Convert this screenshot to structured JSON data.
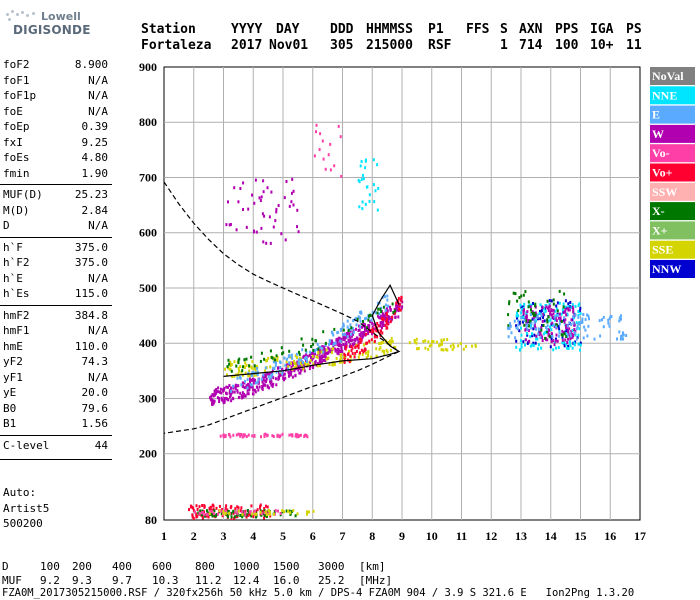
{
  "logo": {
    "line1": "Lowell",
    "line2": "DIGISONDE"
  },
  "header": {
    "row1": [
      "Station",
      "YYYY",
      "DAY",
      "DDD",
      "HHMMSS",
      "P1",
      "FFS",
      "S",
      "AXN",
      "PPS",
      "IGA",
      "PS"
    ],
    "row2": [
      "Fortaleza",
      "2017",
      "Nov01",
      "305",
      "215000",
      "RSF",
      "1",
      "714",
      "100",
      "10+",
      "11"
    ]
  },
  "params": [
    {
      "k": "foF2",
      "v": "8.900"
    },
    {
      "k": "foF1",
      "v": "N/A"
    },
    {
      "k": "foF1p",
      "v": "N/A"
    },
    {
      "k": "foE",
      "v": "N/A"
    },
    {
      "k": "foEp",
      "v": "0.39"
    },
    {
      "k": "fxI",
      "v": "9.25"
    },
    {
      "k": "foEs",
      "v": "4.80"
    },
    {
      "k": "fmin",
      "v": "1.90"
    },
    {
      "k": "MUF(D)",
      "v": "25.23"
    },
    {
      "k": "M(D)",
      "v": "2.84"
    },
    {
      "k": "D",
      "v": "N/A"
    },
    {
      "k": "h`F",
      "v": "375.0"
    },
    {
      "k": "h`F2",
      "v": "375.0"
    },
    {
      "k": "h`E",
      "v": "N/A"
    },
    {
      "k": "h`Es",
      "v": "115.0"
    },
    {
      "k": "hmF2",
      "v": "384.8"
    },
    {
      "k": "hmF1",
      "v": "N/A"
    },
    {
      "k": "hmE",
      "v": "110.0"
    },
    {
      "k": "yF2",
      "v": "74.3"
    },
    {
      "k": "yF1",
      "v": "N/A"
    },
    {
      "k": "yE",
      "v": "20.0"
    },
    {
      "k": "B0",
      "v": "79.6"
    },
    {
      "k": "B1",
      "v": "1.56"
    },
    {
      "k": "C-level",
      "v": "44"
    }
  ],
  "auto": {
    "line1": "Auto:",
    "line2": "Artist5",
    "line3": "500200"
  },
  "legend": [
    {
      "label": "NoVal",
      "color": "#808080"
    },
    {
      "label": "NNE",
      "color": "#00e5ff"
    },
    {
      "label": "E",
      "color": "#5aabff"
    },
    {
      "label": "W",
      "color": "#b000b0"
    },
    {
      "label": "Vo-",
      "color": "#ff3fa8"
    },
    {
      "label": "Vo+",
      "color": "#ff0030"
    },
    {
      "label": "SSW",
      "color": "#ffb0b0"
    },
    {
      "label": "X-",
      "color": "#007800"
    },
    {
      "label": "X+",
      "color": "#80c060"
    },
    {
      "label": "SSE",
      "color": "#d4d400"
    },
    {
      "label": "NNW",
      "color": "#0000d0"
    }
  ],
  "footer": {
    "d_label": "D",
    "d_values": [
      "100",
      "200",
      "400",
      "600",
      "800",
      "1000",
      "1500",
      "3000"
    ],
    "d_unit": "[km]",
    "muf_label": "MUF",
    "muf_values": [
      "9.2",
      "9.3",
      "9.7",
      "10.3",
      "11.2",
      "12.4",
      "16.0",
      "25.2"
    ],
    "muf_unit": "[MHz]",
    "info": "FZA0M_2017305215000.RSF / 320fx256h 50 kHz 5.0 km / DPS-4 FZA0M 904 / 3.9 S 321.6 E   Ion2Png 1.3.20"
  },
  "chart_data": {
    "type": "scatter",
    "xlim": [
      1,
      17
    ],
    "ylim": [
      80,
      900
    ],
    "x_ticks": [
      "1",
      "2",
      "3",
      "4",
      "5",
      "6",
      "7",
      "8",
      "9",
      "10",
      "11",
      "12",
      "13",
      "14",
      "15",
      "16",
      "17"
    ],
    "y_ticks": [
      "80",
      "200",
      "300",
      "400",
      "500",
      "600",
      "700",
      "800",
      "900"
    ],
    "grid": true,
    "legend_position": "right",
    "profile_dashed": [
      [
        1.0,
        692
      ],
      [
        1.5,
        652
      ],
      [
        2.0,
        617
      ],
      [
        2.5,
        588
      ],
      [
        3.0,
        562
      ],
      [
        3.5,
        542
      ],
      [
        4.0,
        525
      ],
      [
        4.5,
        512
      ],
      [
        5.0,
        500
      ],
      [
        5.5,
        488
      ],
      [
        6.0,
        477
      ],
      [
        6.5,
        465
      ],
      [
        7.0,
        453
      ],
      [
        7.5,
        440
      ],
      [
        8.0,
        420
      ],
      [
        8.5,
        400
      ],
      [
        8.9,
        385
      ],
      [
        8.5,
        375
      ],
      [
        8.0,
        362
      ],
      [
        7.5,
        350
      ],
      [
        7.0,
        340
      ],
      [
        6.5,
        330
      ],
      [
        6.0,
        322
      ],
      [
        5.5,
        312
      ],
      [
        5.0,
        302
      ],
      [
        4.5,
        292
      ],
      [
        4.0,
        282
      ],
      [
        3.5,
        272
      ],
      [
        3.0,
        262
      ],
      [
        2.5,
        252
      ],
      [
        2.0,
        245
      ],
      [
        1.0,
        237
      ]
    ],
    "trace_solid": [
      [
        3.0,
        340
      ],
      [
        4.0,
        345
      ],
      [
        5.0,
        350
      ],
      [
        6.0,
        360
      ],
      [
        7.0,
        368
      ],
      [
        8.0,
        372
      ],
      [
        8.6,
        380
      ],
      [
        8.9,
        385
      ],
      [
        8.6,
        395
      ],
      [
        8.2,
        420
      ],
      [
        8.0,
        450
      ],
      [
        8.3,
        480
      ],
      [
        8.6,
        505
      ],
      [
        8.9,
        470
      ]
    ],
    "layers": [
      {
        "color": "#b000b0",
        "x": [
          2.5,
          9.0
        ],
        "y": [
          305,
          470
        ],
        "n": 520,
        "curve": true
      },
      {
        "color": "#d4d400",
        "x": [
          3.0,
          8.8
        ],
        "y": [
          355,
          400
        ],
        "n": 160,
        "curve": true
      },
      {
        "color": "#5aabff",
        "x": [
          3.2,
          8.5
        ],
        "y": [
          330,
          480
        ],
        "n": 140,
        "curve": true
      },
      {
        "color": "#ff0030",
        "x": [
          7.0,
          9.0
        ],
        "y": [
          380,
          480
        ],
        "n": 90,
        "curve": true
      },
      {
        "color": "#007800",
        "x": [
          3.0,
          8.8
        ],
        "y": [
          360,
          470
        ],
        "n": 60,
        "curve": true
      },
      {
        "color": "#0000d0",
        "x": [
          12.8,
          15.0
        ],
        "y": [
          395,
          480
        ],
        "n": 90
      },
      {
        "color": "#00e5ff",
        "x": [
          12.8,
          15.0
        ],
        "y": [
          390,
          475
        ],
        "n": 120
      },
      {
        "color": "#b000b0",
        "x": [
          13.0,
          14.8
        ],
        "y": [
          400,
          470
        ],
        "n": 120
      },
      {
        "color": "#007800",
        "x": [
          12.5,
          14.5
        ],
        "y": [
          410,
          500
        ],
        "n": 50
      },
      {
        "color": "#5aabff",
        "x": [
          12.5,
          16.5
        ],
        "y": [
          410,
          455
        ],
        "n": 100
      },
      {
        "color": "#d4d400",
        "x": [
          9.0,
          11.5
        ],
        "y": [
          390,
          410
        ],
        "n": 40
      },
      {
        "color": "#ff0030",
        "x": [
          1.8,
          4.6
        ],
        "y": [
          85,
          110
        ],
        "n": 90
      },
      {
        "color": "#007800",
        "x": [
          2.0,
          5.4
        ],
        "y": [
          88,
          100
        ],
        "n": 70
      },
      {
        "color": "#ff3fa8",
        "x": [
          2.0,
          5.0
        ],
        "y": [
          92,
          100
        ],
        "n": 40
      },
      {
        "color": "#d4d400",
        "x": [
          2.5,
          6.0
        ],
        "y": [
          92,
          100
        ],
        "n": 30
      },
      {
        "color": "#ff3fa8",
        "x": [
          2.8,
          5.8
        ],
        "y": [
          233,
          238
        ],
        "n": 60
      },
      {
        "color": "#b000b0",
        "x": [
          3.0,
          5.5
        ],
        "y": [
          580,
          700
        ],
        "n": 50
      },
      {
        "color": "#00e5ff",
        "x": [
          7.5,
          8.2
        ],
        "y": [
          640,
          740
        ],
        "n": 25
      },
      {
        "color": "#ff3fa8",
        "x": [
          6.0,
          7.0
        ],
        "y": [
          700,
          800
        ],
        "n": 15
      }
    ]
  }
}
